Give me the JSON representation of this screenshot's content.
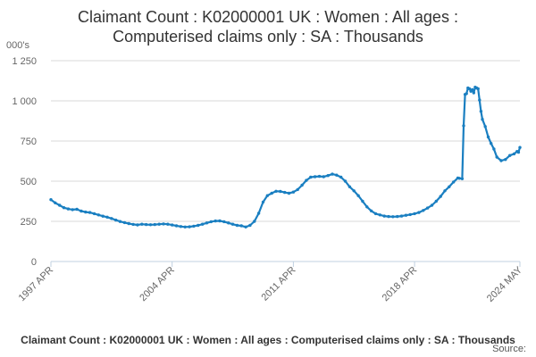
{
  "header": {
    "title_line1": "Claimant Count : K02000001 UK : Women : All ages :",
    "title_line2": "Computerised claims only : SA : Thousands",
    "units": "000's"
  },
  "footer": {
    "caption": "Claimant Count : K02000001 UK : Women : All ages : Computerised claims only : SA : Thousands",
    "source": "Source:"
  },
  "colors": {
    "series": "#1a7fc1",
    "axis": "#c0d0e0",
    "grid": "#d8d8d8",
    "tick_text": "#666666"
  },
  "chart_data": {
    "type": "line",
    "title": "Claimant Count : K02000001 UK : Women : All ages : Computerised claims only : SA : Thousands",
    "ylabel": "000's",
    "xlabel": "",
    "ylim": [
      0,
      1250
    ],
    "xlim": [
      "1997-04",
      "2024-05"
    ],
    "grid": "horizontal",
    "legend": "none",
    "y_ticks": [
      0,
      250,
      500,
      750,
      1000,
      1250
    ],
    "y_tick_labels": [
      "0",
      "250",
      "500",
      "750",
      "1 000",
      "1 250"
    ],
    "x_ticks": [
      "1997-04",
      "2004-04",
      "2011-04",
      "2018-04",
      "2024-05"
    ],
    "x_tick_labels": [
      "1997 APR",
      "2004 APR",
      "2011 APR",
      "2018 APR",
      "2024 MAY"
    ],
    "series": [
      {
        "points": [
          [
            "1997-04",
            385
          ],
          [
            "1997-07",
            365
          ],
          [
            "1997-10",
            350
          ],
          [
            "1998-01",
            335
          ],
          [
            "1998-04",
            327
          ],
          [
            "1998-07",
            323
          ],
          [
            "1998-10",
            325
          ],
          [
            "1999-01",
            314
          ],
          [
            "1999-04",
            308
          ],
          [
            "1999-07",
            305
          ],
          [
            "1999-10",
            298
          ],
          [
            "2000-01",
            290
          ],
          [
            "2000-04",
            282
          ],
          [
            "2000-07",
            276
          ],
          [
            "2000-10",
            268
          ],
          [
            "2001-01",
            258
          ],
          [
            "2001-04",
            249
          ],
          [
            "2001-07",
            242
          ],
          [
            "2001-10",
            236
          ],
          [
            "2002-01",
            231
          ],
          [
            "2002-04",
            228
          ],
          [
            "2002-07",
            232
          ],
          [
            "2002-10",
            230
          ],
          [
            "2003-01",
            229
          ],
          [
            "2003-04",
            230
          ],
          [
            "2003-07",
            232
          ],
          [
            "2003-10",
            234
          ],
          [
            "2004-01",
            232
          ],
          [
            "2004-04",
            227
          ],
          [
            "2004-07",
            222
          ],
          [
            "2004-10",
            218
          ],
          [
            "2005-01",
            215
          ],
          [
            "2005-04",
            216
          ],
          [
            "2005-07",
            220
          ],
          [
            "2005-10",
            225
          ],
          [
            "2006-01",
            232
          ],
          [
            "2006-04",
            240
          ],
          [
            "2006-07",
            248
          ],
          [
            "2006-10",
            252
          ],
          [
            "2007-01",
            253
          ],
          [
            "2007-04",
            248
          ],
          [
            "2007-07",
            240
          ],
          [
            "2007-10",
            232
          ],
          [
            "2008-01",
            225
          ],
          [
            "2008-04",
            222
          ],
          [
            "2008-07",
            215
          ],
          [
            "2008-10",
            225
          ],
          [
            "2009-01",
            250
          ],
          [
            "2009-04",
            300
          ],
          [
            "2009-07",
            370
          ],
          [
            "2009-10",
            410
          ],
          [
            "2010-01",
            425
          ],
          [
            "2010-04",
            437
          ],
          [
            "2010-07",
            436
          ],
          [
            "2010-10",
            430
          ],
          [
            "2011-01",
            425
          ],
          [
            "2011-04",
            432
          ],
          [
            "2011-07",
            448
          ],
          [
            "2011-10",
            475
          ],
          [
            "2012-01",
            505
          ],
          [
            "2012-04",
            525
          ],
          [
            "2012-07",
            528
          ],
          [
            "2012-10",
            530
          ],
          [
            "2013-01",
            528
          ],
          [
            "2013-04",
            535
          ],
          [
            "2013-07",
            544
          ],
          [
            "2013-10",
            538
          ],
          [
            "2014-01",
            525
          ],
          [
            "2014-04",
            500
          ],
          [
            "2014-07",
            465
          ],
          [
            "2014-10",
            440
          ],
          [
            "2015-01",
            410
          ],
          [
            "2015-04",
            375
          ],
          [
            "2015-07",
            340
          ],
          [
            "2015-10",
            315
          ],
          [
            "2016-01",
            298
          ],
          [
            "2016-04",
            290
          ],
          [
            "2016-07",
            283
          ],
          [
            "2016-10",
            280
          ],
          [
            "2017-01",
            279
          ],
          [
            "2017-04",
            280
          ],
          [
            "2017-07",
            283
          ],
          [
            "2017-10",
            288
          ],
          [
            "2018-01",
            292
          ],
          [
            "2018-04",
            298
          ],
          [
            "2018-07",
            305
          ],
          [
            "2018-10",
            318
          ],
          [
            "2019-01",
            333
          ],
          [
            "2019-04",
            350
          ],
          [
            "2019-07",
            375
          ],
          [
            "2019-10",
            405
          ],
          [
            "2020-01",
            440
          ],
          [
            "2020-04",
            465
          ],
          [
            "2020-07",
            495
          ],
          [
            "2020-10",
            520
          ],
          [
            "2020-11",
            518
          ],
          [
            "2021-01",
            515
          ],
          [
            "2021-02",
            845
          ],
          [
            "2021-03",
            1040
          ],
          [
            "2021-04",
            1045
          ],
          [
            "2021-05",
            1080
          ],
          [
            "2021-06",
            1075
          ],
          [
            "2021-07",
            1060
          ],
          [
            "2021-08",
            1070
          ],
          [
            "2021-09",
            1050
          ],
          [
            "2021-10",
            1085
          ],
          [
            "2021-11",
            1080
          ],
          [
            "2021-12",
            1075
          ],
          [
            "2022-01",
            1005
          ],
          [
            "2022-02",
            935
          ],
          [
            "2022-03",
            885
          ],
          [
            "2022-05",
            840
          ],
          [
            "2022-07",
            775
          ],
          [
            "2022-09",
            735
          ],
          [
            "2022-11",
            700
          ],
          [
            "2023-01",
            650
          ],
          [
            "2023-04",
            628
          ],
          [
            "2023-07",
            635
          ],
          [
            "2023-10",
            660
          ],
          [
            "2024-01",
            670
          ],
          [
            "2024-03",
            685
          ],
          [
            "2024-04",
            680
          ],
          [
            "2024-05",
            710
          ]
        ]
      }
    ]
  }
}
